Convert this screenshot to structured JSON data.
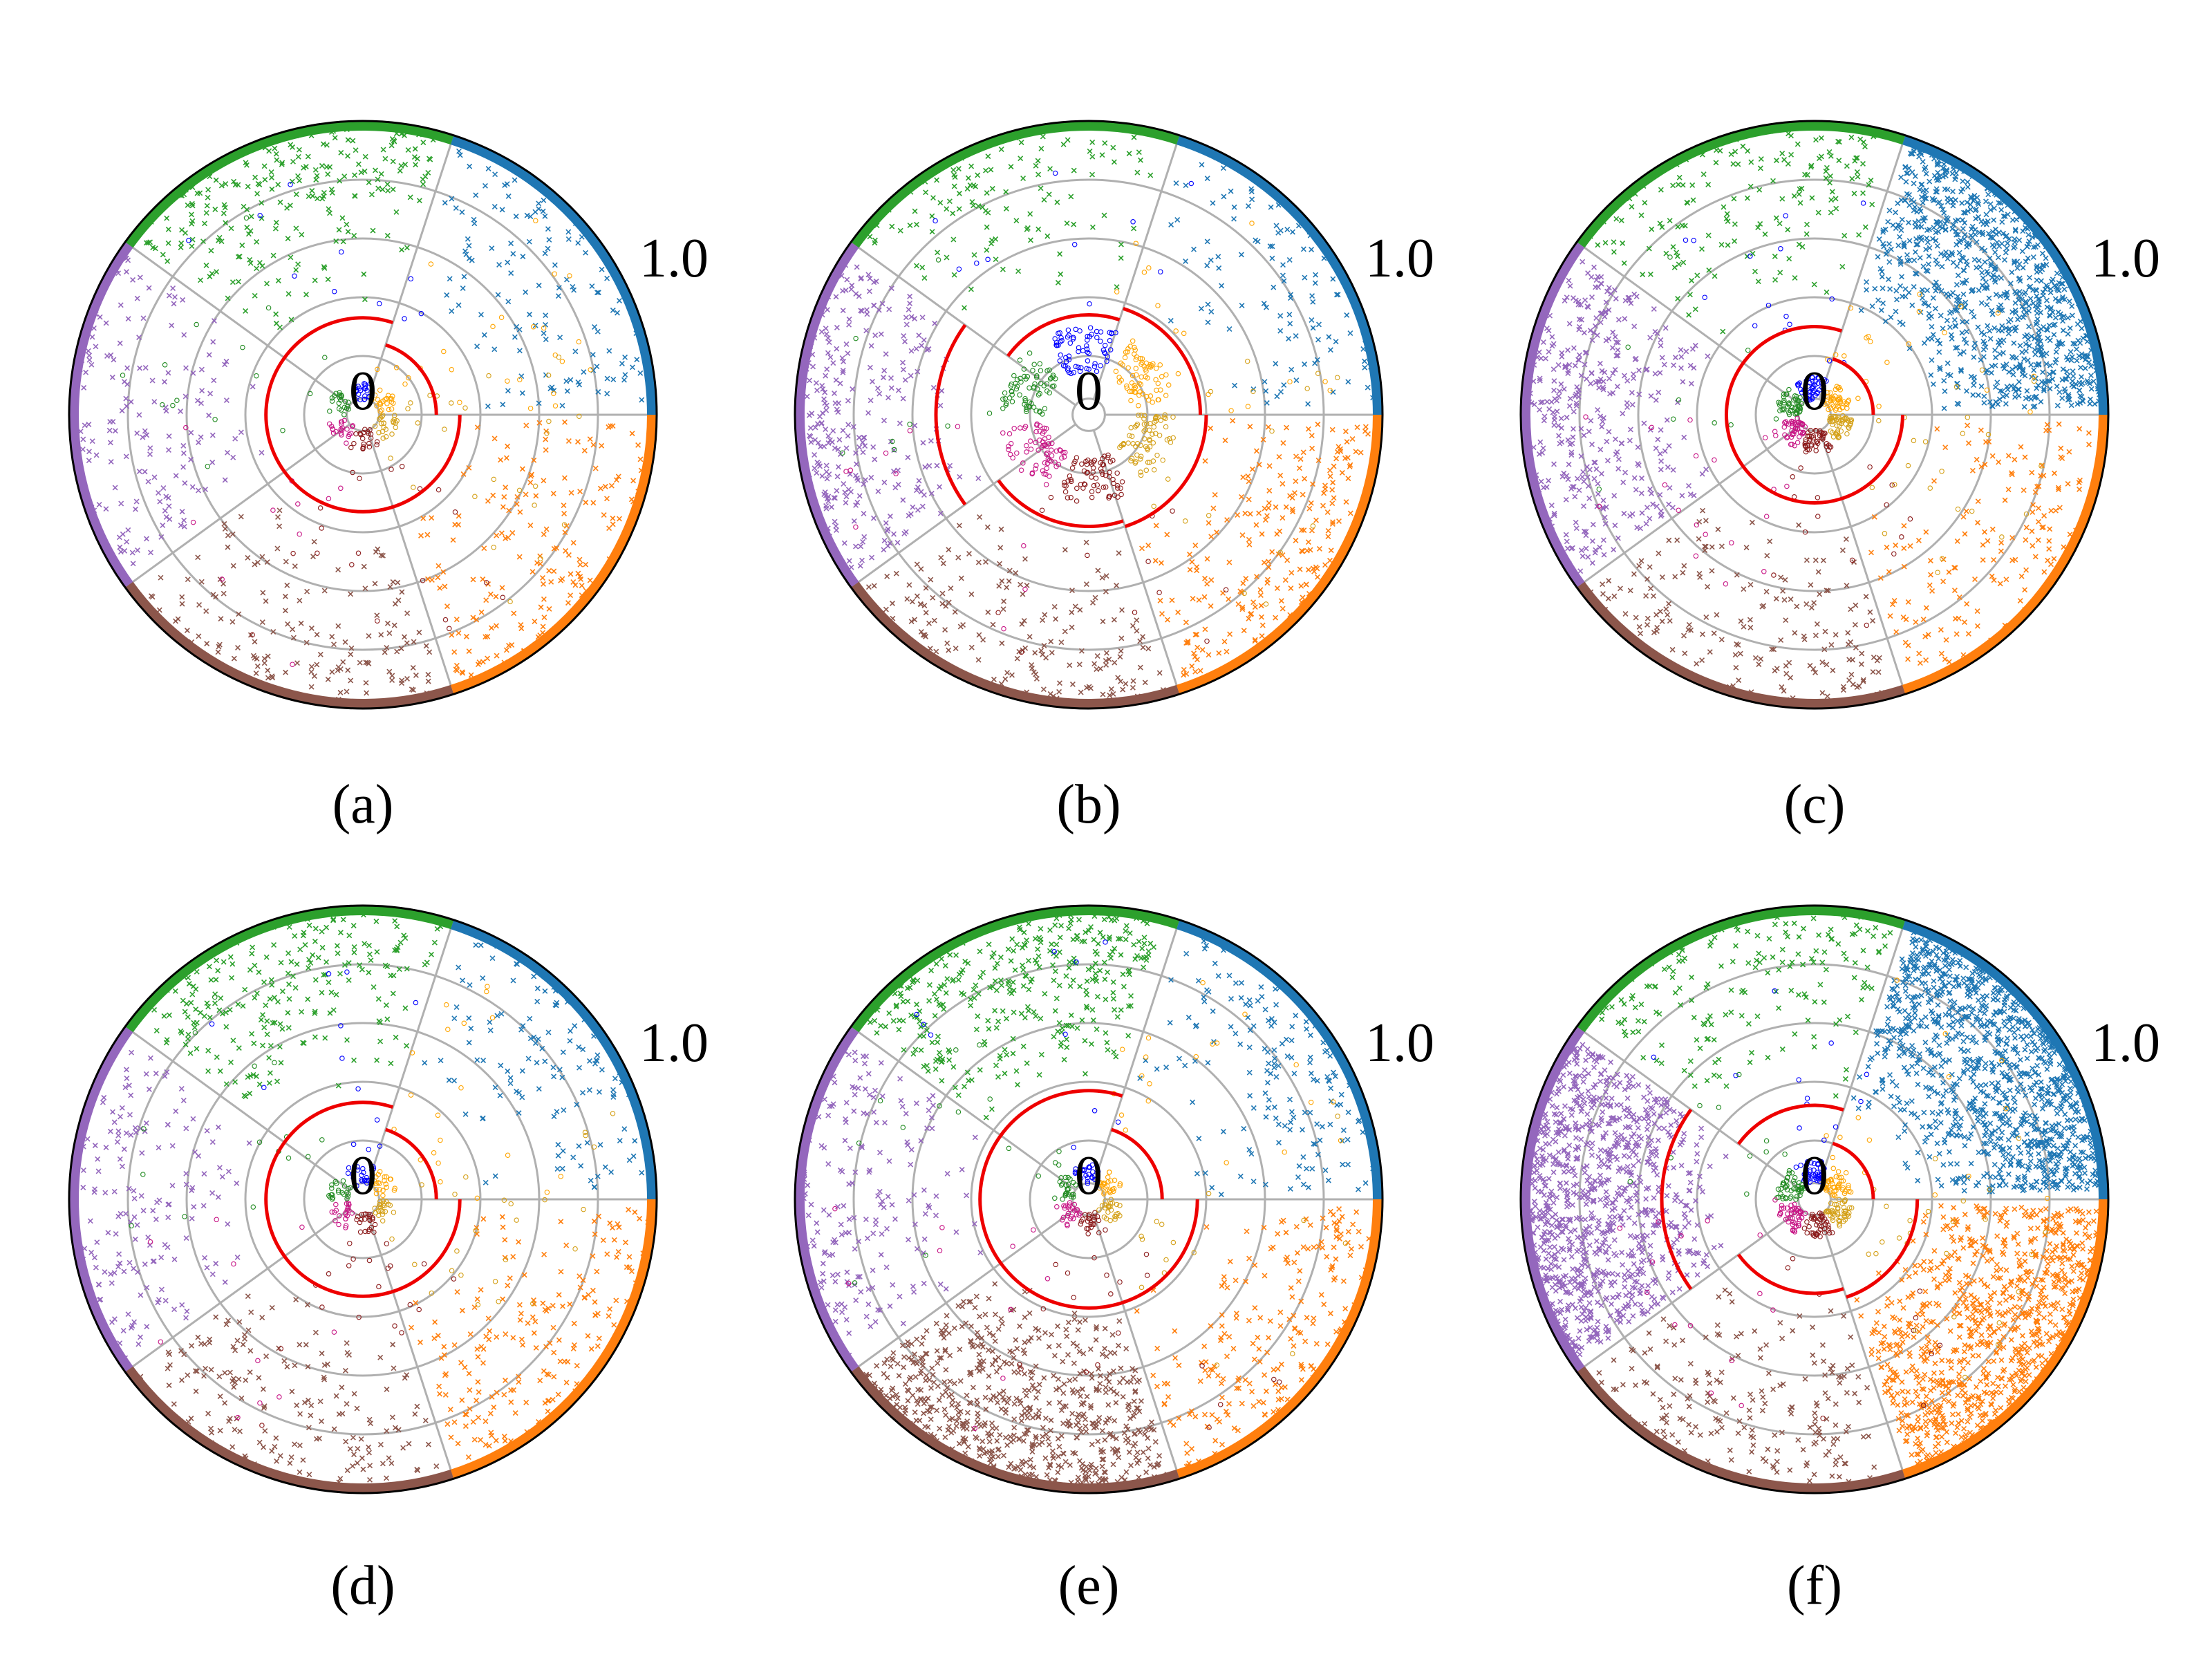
{
  "figure": {
    "title": "",
    "outer_tick_label": "1.0",
    "center_tick_label": "0"
  },
  "chart_data": [
    {
      "type": "scatter",
      "subtype": "polar",
      "caption": "(a)",
      "r_range": [
        0,
        1.0
      ],
      "grid_radii": [
        0.2,
        0.4,
        0.6,
        0.8
      ],
      "sector_boundaries_deg": [
        0,
        72,
        144,
        216,
        288
      ],
      "red_arcs": [
        {
          "start_deg": 0,
          "end_deg": 72,
          "r": 0.25
        },
        {
          "start_deg": 72,
          "end_deg": 360,
          "r": 0.33
        }
      ],
      "known_counts": [
        22,
        22,
        22,
        22,
        22,
        22
      ],
      "unknown_counts": [
        130,
        230,
        160,
        160,
        180
      ],
      "known_radius": [
        0.05,
        0.12
      ],
      "unknown_radius": [
        0.35,
        0.98
      ],
      "scatter_radius": [
        0.15,
        0.9
      ],
      "scatter_counts": [
        25,
        10,
        15,
        10,
        20,
        25
      ]
    },
    {
      "type": "scatter",
      "subtype": "polar",
      "caption": "(b)",
      "r_range": [
        0,
        1.0
      ],
      "grid_radii": [
        0.2,
        0.4,
        0.6,
        0.8
      ],
      "sector_boundaries_deg": [
        0,
        72,
        144,
        216,
        288
      ],
      "red_arcs": [
        {
          "start_deg": 0,
          "end_deg": 72,
          "r": 0.38
        },
        {
          "start_deg": 72,
          "end_deg": 144,
          "r": 0.34
        },
        {
          "start_deg": 144,
          "end_deg": 216,
          "r": 0.52
        },
        {
          "start_deg": 216,
          "end_deg": 288,
          "r": 0.38
        },
        {
          "start_deg": 288,
          "end_deg": 360,
          "r": 0.4
        }
      ],
      "known_counts": [
        70,
        70,
        70,
        70,
        70,
        70
      ],
      "unknown_counts": [
        110,
        120,
        280,
        180,
        230
      ],
      "known_radius": [
        0.15,
        0.3
      ],
      "unknown_radius": [
        0.4,
        0.98
      ],
      "scatter_radius": [
        0.3,
        0.9
      ],
      "scatter_counts": [
        15,
        10,
        8,
        10,
        12,
        15
      ]
    },
    {
      "type": "scatter",
      "subtype": "polar",
      "caption": "(c)",
      "r_range": [
        0,
        1.0
      ],
      "grid_radii": [
        0.2,
        0.4,
        0.6,
        0.8
      ],
      "sector_boundaries_deg": [
        0,
        72,
        144,
        216,
        288
      ],
      "red_arcs": [
        {
          "start_deg": 0,
          "end_deg": 72,
          "r": 0.2
        },
        {
          "start_deg": 72,
          "end_deg": 360,
          "r": 0.3
        }
      ],
      "known_counts": [
        45,
        45,
        45,
        45,
        45,
        45
      ],
      "unknown_counts": [
        900,
        170,
        380,
        180,
        160
      ],
      "known_radius": [
        0.05,
        0.13
      ],
      "unknown_radius": [
        0.35,
        0.98
      ],
      "scatter_radius": [
        0.12,
        0.8
      ],
      "scatter_counts": [
        20,
        15,
        10,
        20,
        15,
        25
      ]
    },
    {
      "type": "scatter",
      "subtype": "polar",
      "caption": "(d)",
      "r_range": [
        0,
        1.0
      ],
      "grid_radii": [
        0.2,
        0.4,
        0.6,
        0.8
      ],
      "sector_boundaries_deg": [
        0,
        72,
        144,
        216,
        288
      ],
      "red_arcs": [
        {
          "start_deg": 0,
          "end_deg": 72,
          "r": 0.25
        },
        {
          "start_deg": 72,
          "end_deg": 360,
          "r": 0.33
        }
      ],
      "known_counts": [
        22,
        22,
        22,
        22,
        22,
        22
      ],
      "unknown_counts": [
        120,
        220,
        160,
        170,
        190
      ],
      "known_radius": [
        0.05,
        0.12
      ],
      "unknown_radius": [
        0.35,
        0.98
      ],
      "scatter_radius": [
        0.15,
        0.9
      ],
      "scatter_counts": [
        20,
        12,
        15,
        10,
        20,
        25
      ]
    },
    {
      "type": "scatter",
      "subtype": "polar",
      "caption": "(e)",
      "r_range": [
        0,
        1.0
      ],
      "grid_radii": [
        0.2,
        0.4,
        0.6,
        0.8
      ],
      "sector_boundaries_deg": [
        0,
        72,
        144,
        216,
        288
      ],
      "red_arcs": [
        {
          "start_deg": 0,
          "end_deg": 72,
          "r": 0.25
        },
        {
          "start_deg": 72,
          "end_deg": 360,
          "r": 0.37
        }
      ],
      "known_counts": [
        25,
        25,
        25,
        25,
        25,
        25
      ],
      "unknown_counts": [
        160,
        350,
        190,
        650,
        210
      ],
      "known_radius": [
        0.05,
        0.12
      ],
      "unknown_radius": [
        0.35,
        0.98
      ],
      "scatter_radius": [
        0.15,
        0.9
      ],
      "scatter_counts": [
        20,
        10,
        15,
        10,
        20,
        15
      ]
    },
    {
      "type": "scatter",
      "subtype": "polar",
      "caption": "(f)",
      "r_range": [
        0,
        1.0
      ],
      "grid_radii": [
        0.2,
        0.4,
        0.6,
        0.8
      ],
      "sector_boundaries_deg": [
        0,
        72,
        144,
        216,
        288
      ],
      "red_arcs": [
        {
          "start_deg": 0,
          "end_deg": 72,
          "r": 0.2
        },
        {
          "start_deg": 72,
          "end_deg": 144,
          "r": 0.32
        },
        {
          "start_deg": 144,
          "end_deg": 216,
          "r": 0.52
        },
        {
          "start_deg": 216,
          "end_deg": 288,
          "r": 0.32
        },
        {
          "start_deg": 288,
          "end_deg": 360,
          "r": 0.35
        }
      ],
      "known_counts": [
        45,
        45,
        45,
        45,
        45,
        45
      ],
      "unknown_counts": [
        1100,
        180,
        1000,
        200,
        900
      ],
      "known_radius": [
        0.05,
        0.13
      ],
      "unknown_radius": [
        0.32,
        0.98
      ],
      "scatter_radius": [
        0.12,
        0.8
      ],
      "scatter_counts": [
        15,
        12,
        10,
        15,
        10,
        25
      ]
    }
  ],
  "colors": {
    "unknown_classes": [
      "#1f77b4",
      "#2ca02c",
      "#9467bd",
      "#8c564b",
      "#ff7f0e"
    ],
    "known_classes": [
      "#ffa500",
      "#0000ff",
      "#228b22",
      "#c71585",
      "#8b1a1a",
      "#d4a017"
    ],
    "grid": "#b0b0b0",
    "red_arc": "#ee0000",
    "outline": "#000000"
  }
}
